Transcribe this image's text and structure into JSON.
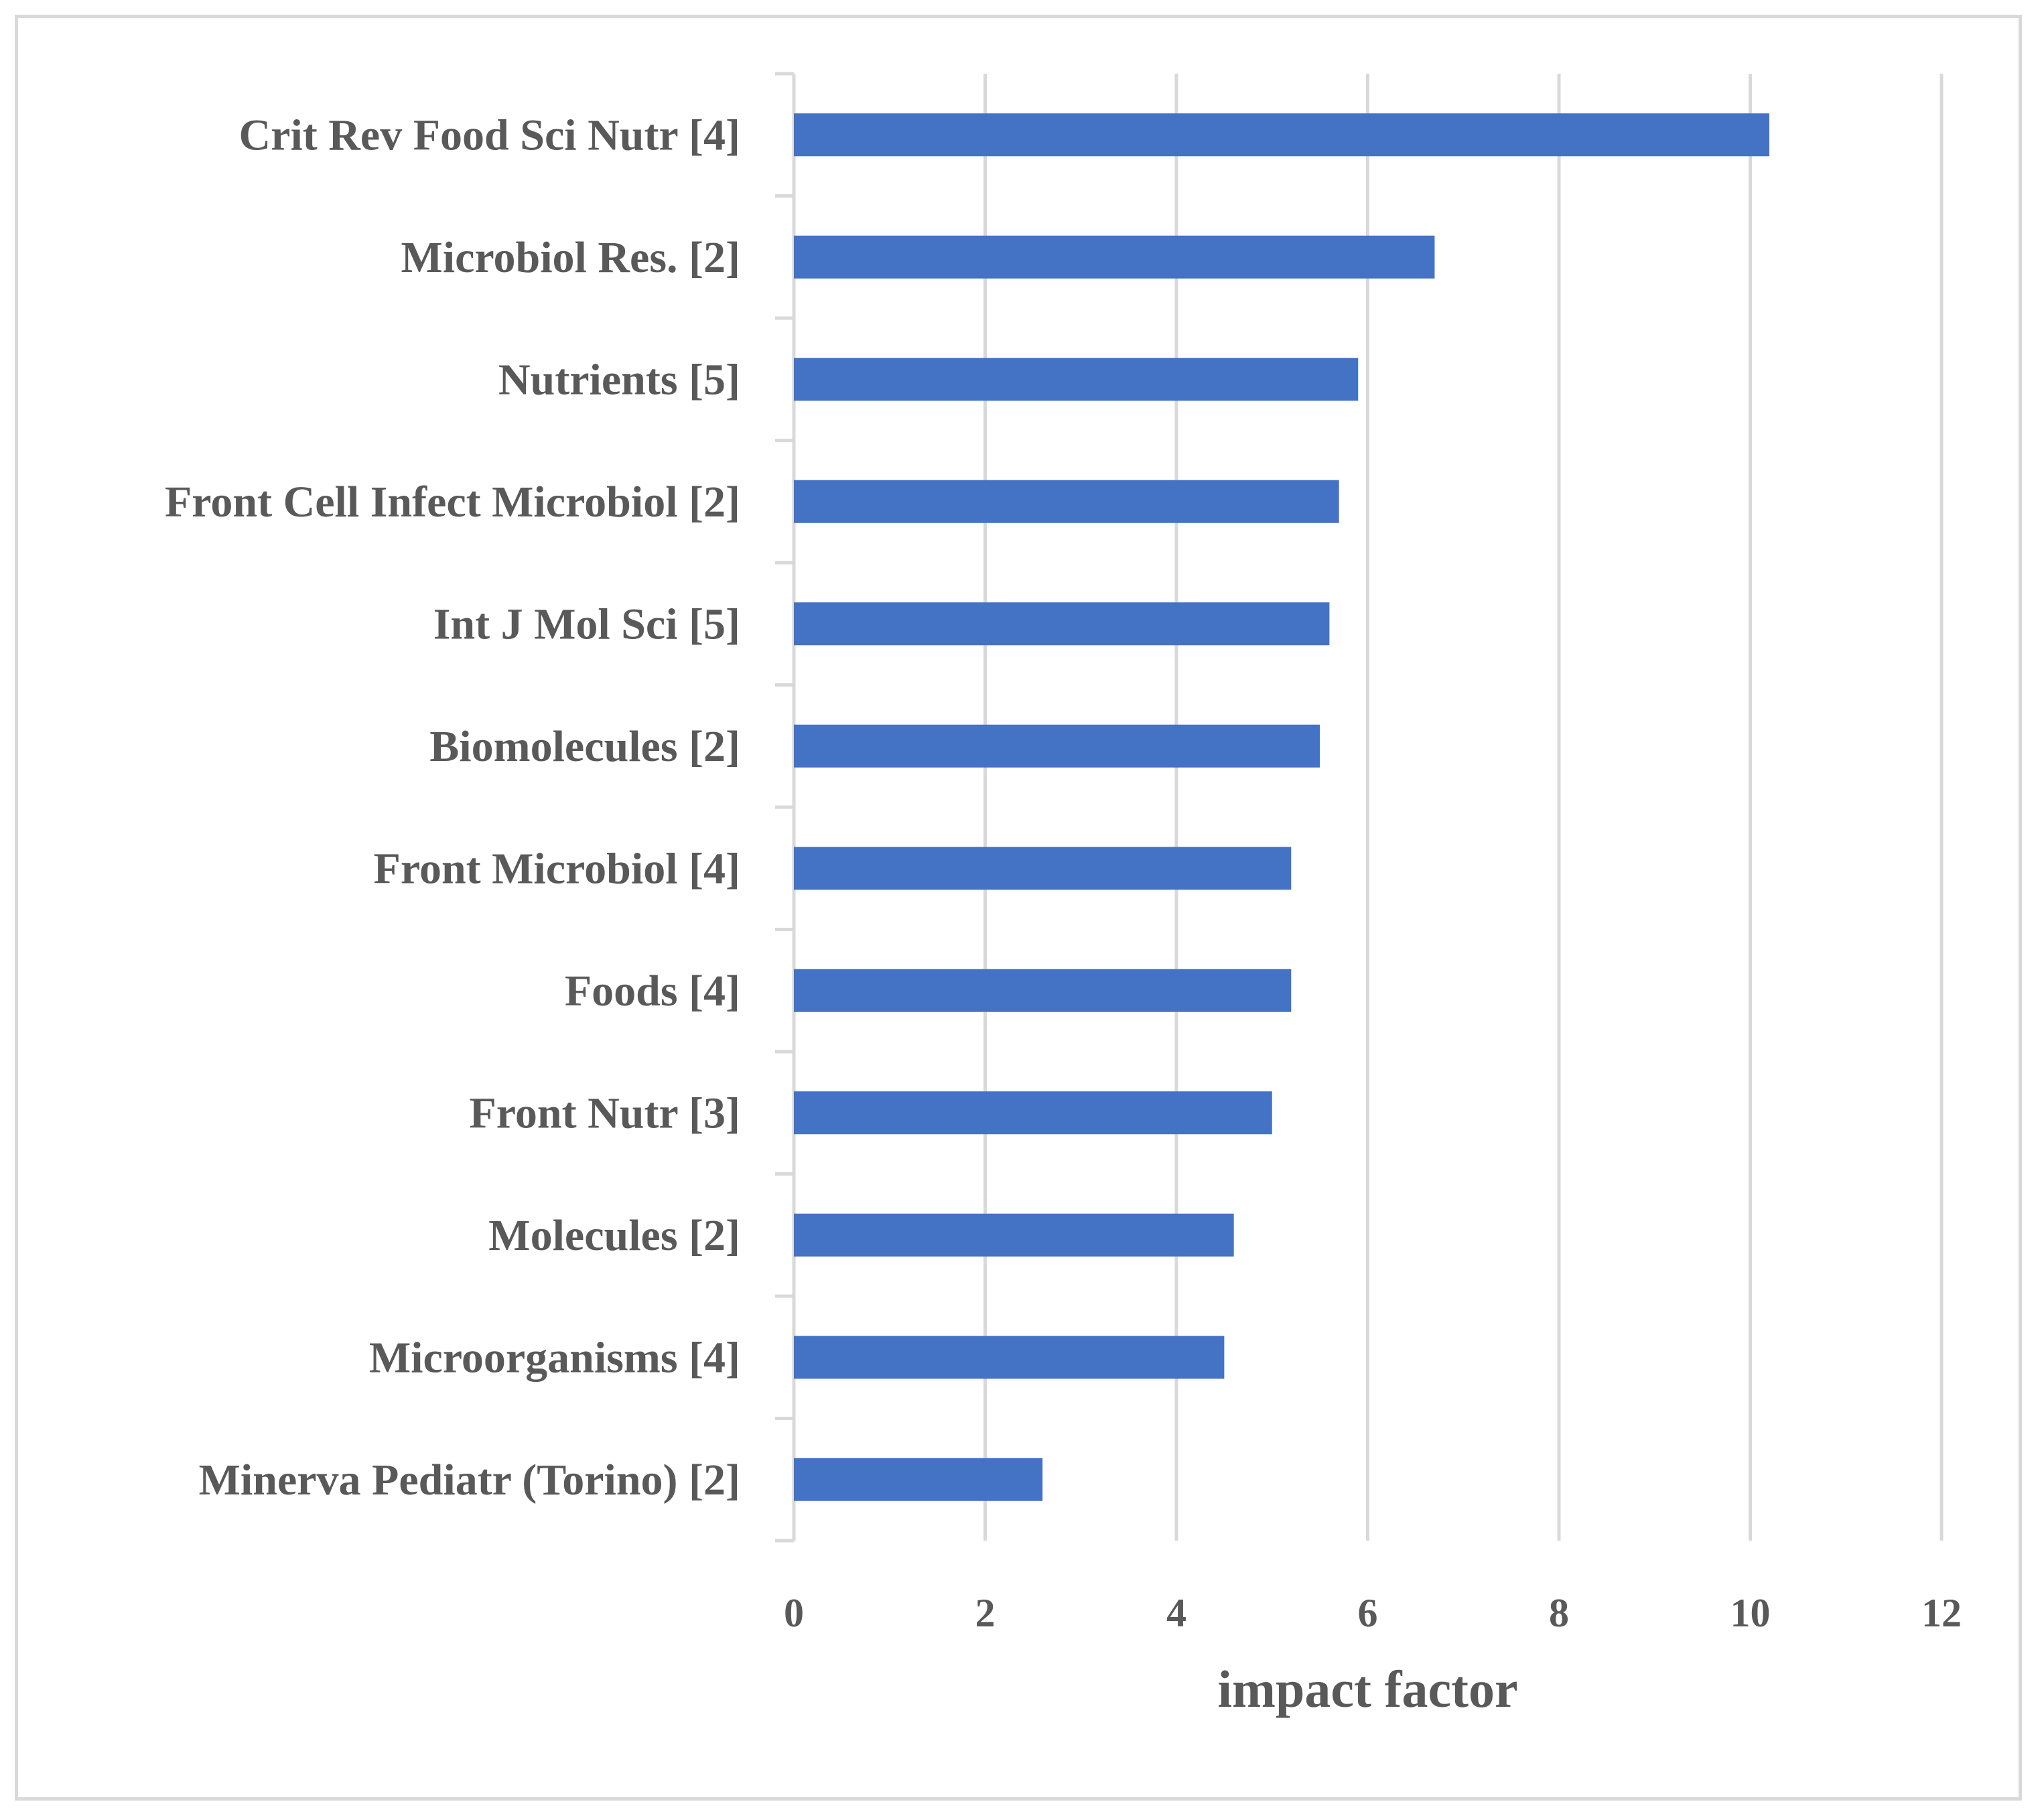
{
  "chart_data": {
    "type": "bar",
    "orientation": "horizontal",
    "categories": [
      "Crit Rev Food Sci Nutr [4]",
      "Microbiol Res. [2]",
      "Nutrients [5]",
      "Front Cell Infect Microbiol [2]",
      "Int J Mol Sci [5]",
      "Biomolecules [2]",
      "Front Microbiol [4]",
      "Foods [4]",
      "Front Nutr [3]",
      "Molecules [2]",
      "Microorganisms [4]",
      "Minerva Pediatr (Torino) [2]"
    ],
    "values": [
      10.2,
      6.7,
      5.9,
      5.7,
      5.6,
      5.5,
      5.2,
      5.2,
      5.0,
      4.6,
      4.5,
      2.6
    ],
    "xlabel": "impact factor",
    "ylabel": "",
    "title": "",
    "xlim": [
      0,
      12
    ],
    "xticks": [
      "0",
      "2",
      "4",
      "6",
      "8",
      "10",
      "12"
    ],
    "grid": true,
    "legend": "none",
    "bar_color": "#4472C4",
    "grid_color": "#d9d9d9",
    "text_color": "#595959"
  }
}
